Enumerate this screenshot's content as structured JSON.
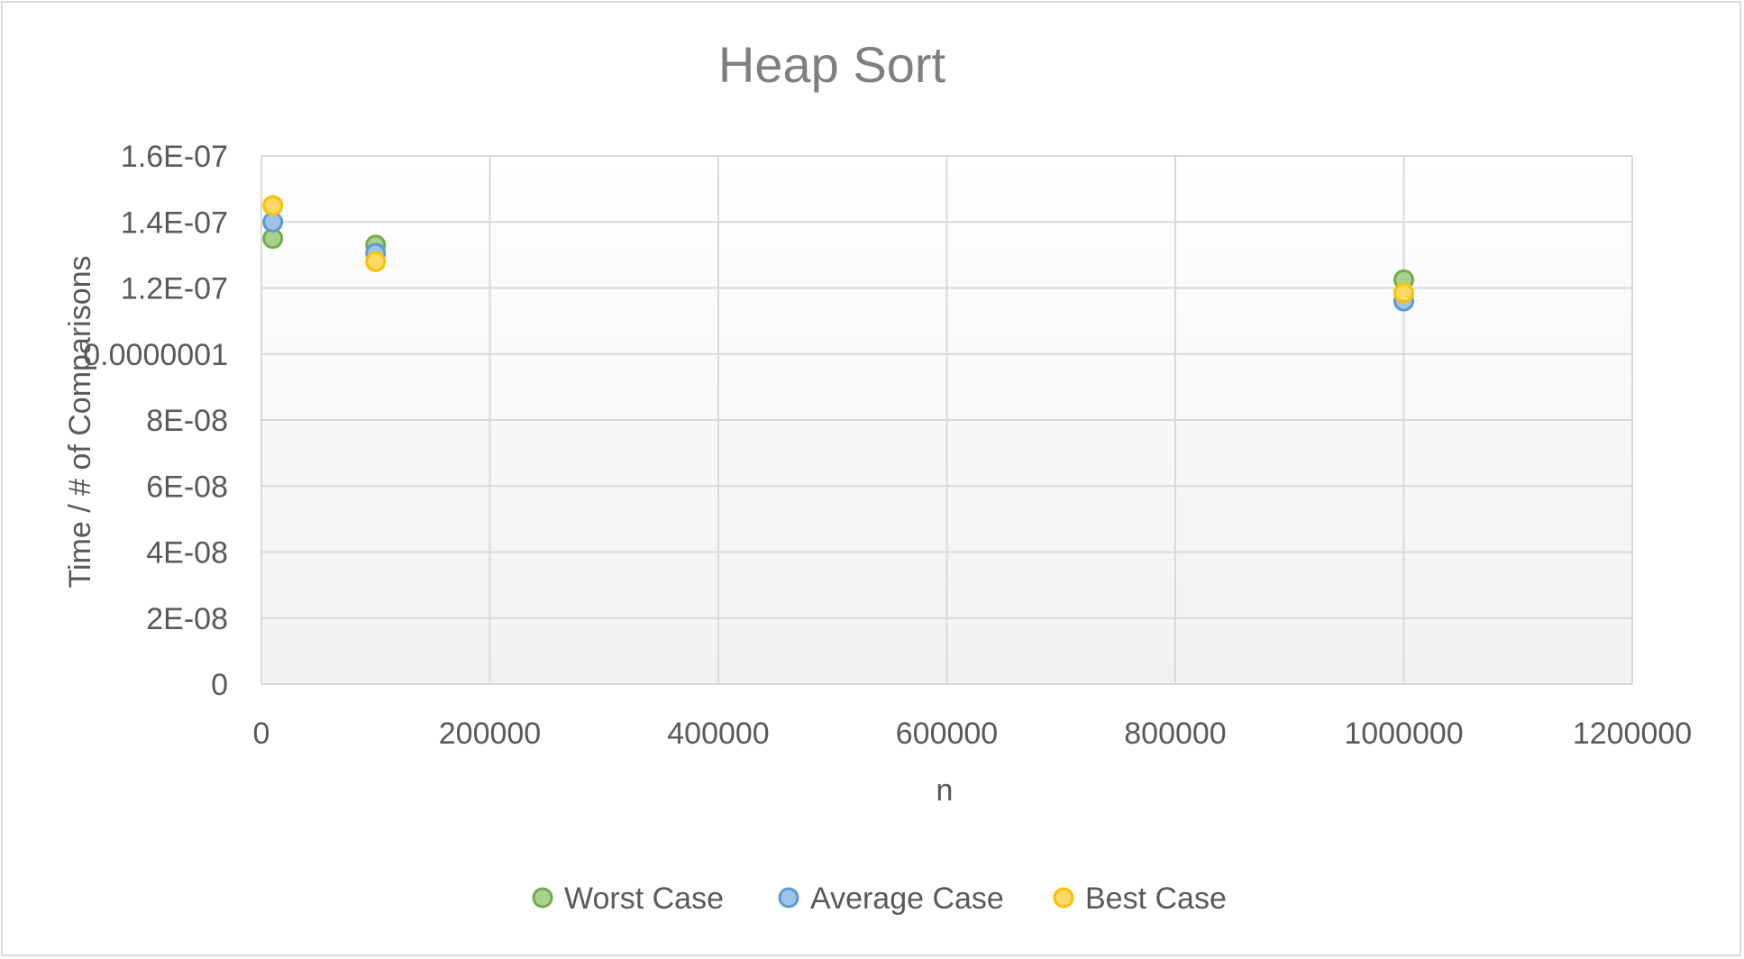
{
  "chart_data": {
    "type": "scatter",
    "title": "Heap Sort",
    "xlabel": "n",
    "ylabel": "Time / # of Comparisons",
    "xlim": [
      0,
      1200000
    ],
    "ylim": [
      0,
      1.6e-07
    ],
    "x_ticks": [
      0,
      200000,
      400000,
      600000,
      800000,
      1000000,
      1200000
    ],
    "x_tick_labels": [
      "0",
      "200000",
      "400000",
      "600000",
      "800000",
      "1000000",
      "1200000"
    ],
    "y_ticks": [
      0,
      2e-08,
      4e-08,
      6e-08,
      8e-08,
      1e-07,
      1.2e-07,
      1.4e-07,
      1.6e-07
    ],
    "y_tick_labels": [
      "0",
      "2E-08",
      "4E-08",
      "6E-08",
      "8E-08",
      "0.0000001",
      "1.2E-07",
      "1.4E-07",
      "1.6E-07"
    ],
    "grid": true,
    "legend_position": "bottom",
    "series": [
      {
        "name": "Worst Case",
        "color": "#70ad47",
        "fill": "#a9d18e",
        "x": [
          10000,
          100000,
          1000000
        ],
        "y": [
          1.35e-07,
          1.33e-07,
          1.225e-07
        ]
      },
      {
        "name": "Average Case",
        "color": "#5b9bd5",
        "fill": "#9dc3e6",
        "x": [
          10000,
          100000,
          1000000
        ],
        "y": [
          1.4e-07,
          1.305e-07,
          1.16e-07
        ]
      },
      {
        "name": "Best Case",
        "color": "#ffc000",
        "fill": "#ffd966",
        "x": [
          10000,
          100000,
          1000000
        ],
        "y": [
          1.45e-07,
          1.28e-07,
          1.185e-07
        ]
      }
    ]
  }
}
